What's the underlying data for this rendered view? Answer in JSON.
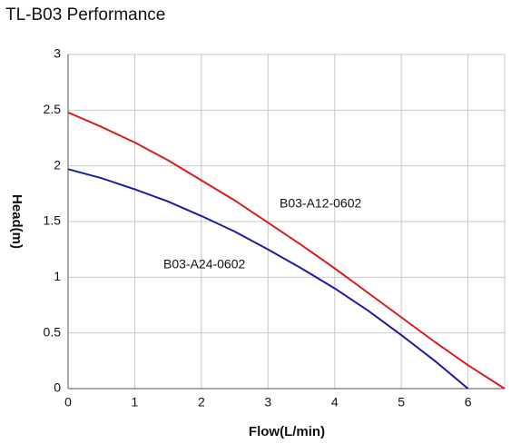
{
  "chart_data": {
    "type": "line",
    "title": "TL-B03  Performance",
    "x_label": "Flow(L/min)",
    "y_label": "Head(m)",
    "xlim": [
      0,
      6.55
    ],
    "xticks": [
      0,
      1,
      2,
      3,
      4,
      5,
      6
    ],
    "ylim": [
      0,
      3
    ],
    "yticks": [
      0,
      0.5,
      1,
      1.5,
      2,
      2.5,
      3
    ],
    "grid": true,
    "series": [
      {
        "name": "B03-A12-0602",
        "color": "#d81c1c",
        "x": [
          0,
          0.5,
          1,
          1.5,
          2,
          2.5,
          3,
          3.5,
          4,
          4.5,
          5,
          5.5,
          6,
          6.55
        ],
        "values": [
          2.48,
          2.35,
          2.21,
          2.05,
          1.87,
          1.69,
          1.49,
          1.29,
          1.08,
          0.86,
          0.64,
          0.42,
          0.21,
          0
        ]
      },
      {
        "name": "B03-A24-0602",
        "color": "#1c1ca0",
        "x": [
          0,
          0.5,
          1,
          1.5,
          2,
          2.5,
          3,
          3.5,
          4,
          4.5,
          5,
          5.5,
          6
        ],
        "values": [
          1.97,
          1.89,
          1.79,
          1.68,
          1.55,
          1.41,
          1.25,
          1.08,
          0.9,
          0.7,
          0.48,
          0.25,
          0
        ]
      }
    ]
  }
}
